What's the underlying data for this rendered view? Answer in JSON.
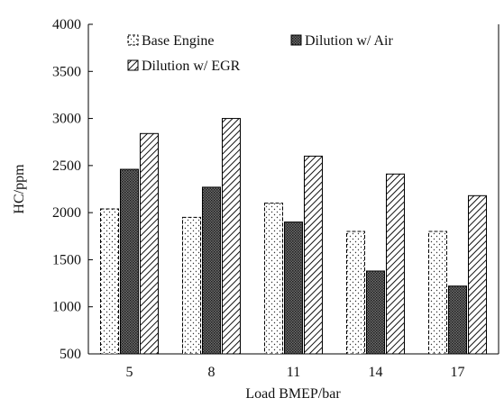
{
  "chart_data": {
    "type": "bar",
    "title": "",
    "xlabel": "Load BMEP/bar",
    "ylabel": "HC/ppm",
    "categories": [
      "5",
      "8",
      "11",
      "14",
      "17"
    ],
    "ylim": [
      500,
      4000
    ],
    "yticks": [
      "500",
      "1000",
      "1500",
      "2000",
      "2500",
      "3000",
      "3500",
      "4000"
    ],
    "grid": false,
    "legend_position": "top-left inside",
    "series": [
      {
        "name": "Base Engine",
        "pattern": "dotted-dashed",
        "values": [
          2040,
          1950,
          2100,
          1800,
          1800
        ]
      },
      {
        "name": "Dilution w/ Air",
        "pattern": "dense-crosshatch",
        "values": [
          2460,
          2270,
          1900,
          1380,
          1220
        ]
      },
      {
        "name": "Dilution w/ EGR",
        "pattern": "diagonal-hatch",
        "values": [
          2840,
          3000,
          2600,
          2410,
          2180
        ]
      }
    ]
  }
}
